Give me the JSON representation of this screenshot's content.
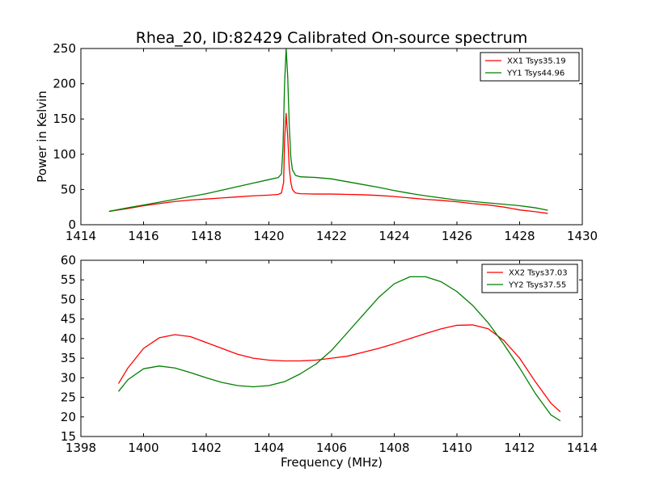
{
  "chart_data": [
    {
      "type": "line",
      "title": "Rhea_20, ID:82429 Calibrated On-source spectrum",
      "xlabel": "",
      "ylabel": "Power in Kelvin",
      "xlim": [
        1414,
        1430
      ],
      "ylim": [
        0,
        250
      ],
      "xticks": [
        "1414",
        "1416",
        "1418",
        "1420",
        "1422",
        "1424",
        "1426",
        "1428",
        "1430"
      ],
      "yticks": [
        "0",
        "50",
        "100",
        "150",
        "200",
        "250"
      ],
      "grid": false,
      "legend_position": "top-right",
      "colors": {
        "XX1": "#ff0000",
        "YY1": "#008000"
      },
      "series": [
        {
          "name": "XX1 Tsys35.19",
          "color": "#ff0000",
          "points": [
            [
              1414.9,
              19
            ],
            [
              1415.5,
              23
            ],
            [
              1416.0,
              27
            ],
            [
              1416.5,
              30
            ],
            [
              1417.0,
              33
            ],
            [
              1417.5,
              35
            ],
            [
              1418.0,
              36.5
            ],
            [
              1418.5,
              38
            ],
            [
              1419.0,
              39.5
            ],
            [
              1419.5,
              41
            ],
            [
              1420.0,
              42
            ],
            [
              1420.3,
              43
            ],
            [
              1420.4,
              45
            ],
            [
              1420.47,
              60
            ],
            [
              1420.5,
              120
            ],
            [
              1420.55,
              158
            ],
            [
              1420.6,
              125
            ],
            [
              1420.65,
              80
            ],
            [
              1420.7,
              60
            ],
            [
              1420.75,
              50
            ],
            [
              1420.85,
              45
            ],
            [
              1421.0,
              44
            ],
            [
              1421.5,
              43.5
            ],
            [
              1422.0,
              43.5
            ],
            [
              1422.5,
              43
            ],
            [
              1423.0,
              42.5
            ],
            [
              1423.5,
              41.5
            ],
            [
              1424.0,
              40
            ],
            [
              1424.5,
              38
            ],
            [
              1425.0,
              36
            ],
            [
              1425.5,
              34.5
            ],
            [
              1426.0,
              32.5
            ],
            [
              1426.5,
              30
            ],
            [
              1427.0,
              28
            ],
            [
              1427.5,
              25
            ],
            [
              1428.0,
              21
            ],
            [
              1428.5,
              18.5
            ],
            [
              1428.9,
              16
            ]
          ]
        },
        {
          "name": "YY1 Tsys44.96",
          "color": "#008000",
          "points": [
            [
              1414.9,
              19
            ],
            [
              1415.5,
              24
            ],
            [
              1416.0,
              28
            ],
            [
              1416.5,
              32
            ],
            [
              1417.0,
              36
            ],
            [
              1417.5,
              40
            ],
            [
              1418.0,
              44
            ],
            [
              1418.5,
              49
            ],
            [
              1419.0,
              54
            ],
            [
              1419.5,
              59
            ],
            [
              1420.0,
              64
            ],
            [
              1420.3,
              67
            ],
            [
              1420.4,
              72
            ],
            [
              1420.45,
              110
            ],
            [
              1420.5,
              200
            ],
            [
              1420.55,
              250
            ],
            [
              1420.6,
              210
            ],
            [
              1420.65,
              140
            ],
            [
              1420.7,
              95
            ],
            [
              1420.75,
              78
            ],
            [
              1420.85,
              70
            ],
            [
              1421.0,
              68
            ],
            [
              1421.5,
              67
            ],
            [
              1422.0,
              65
            ],
            [
              1422.5,
              61
            ],
            [
              1423.0,
              57
            ],
            [
              1423.5,
              53
            ],
            [
              1424.0,
              48.5
            ],
            [
              1424.5,
              44.5
            ],
            [
              1425.0,
              41
            ],
            [
              1425.5,
              38
            ],
            [
              1426.0,
              35
            ],
            [
              1426.5,
              33
            ],
            [
              1427.0,
              31
            ],
            [
              1427.5,
              29
            ],
            [
              1428.0,
              27
            ],
            [
              1428.5,
              24
            ],
            [
              1428.9,
              20.5
            ]
          ]
        }
      ]
    },
    {
      "type": "line",
      "title": "",
      "xlabel": "Frequency (MHz)",
      "ylabel": "",
      "xlim": [
        1398,
        1414
      ],
      "ylim": [
        15,
        60
      ],
      "xticks": [
        "1398",
        "1400",
        "1402",
        "1404",
        "1406",
        "1408",
        "1410",
        "1412",
        "1414"
      ],
      "yticks": [
        "15",
        "20",
        "25",
        "30",
        "35",
        "40",
        "45",
        "50",
        "55",
        "60"
      ],
      "grid": false,
      "legend_position": "top-right",
      "colors": {
        "XX2": "#ff0000",
        "YY2": "#008000"
      },
      "series": [
        {
          "name": "XX2 Tsys37.03",
          "color": "#ff0000",
          "points": [
            [
              1399.2,
              28.5
            ],
            [
              1399.5,
              32.5
            ],
            [
              1400.0,
              37.5
            ],
            [
              1400.5,
              40.2
            ],
            [
              1401.0,
              41
            ],
            [
              1401.5,
              40.5
            ],
            [
              1402.0,
              39
            ],
            [
              1402.5,
              37.5
            ],
            [
              1403.0,
              36
            ],
            [
              1403.5,
              35
            ],
            [
              1404.0,
              34.5
            ],
            [
              1404.5,
              34.3
            ],
            [
              1405.0,
              34.3
            ],
            [
              1405.5,
              34.5
            ],
            [
              1406.0,
              35
            ],
            [
              1406.5,
              35.5
            ],
            [
              1407.0,
              36.5
            ],
            [
              1407.5,
              37.5
            ],
            [
              1408.0,
              38.7
            ],
            [
              1408.5,
              40
            ],
            [
              1409.0,
              41.3
            ],
            [
              1409.5,
              42.5
            ],
            [
              1410.0,
              43.4
            ],
            [
              1410.5,
              43.5
            ],
            [
              1411.0,
              42.5
            ],
            [
              1411.5,
              39.5
            ],
            [
              1412.0,
              35
            ],
            [
              1412.5,
              29
            ],
            [
              1413.0,
              23.5
            ],
            [
              1413.3,
              21.3
            ]
          ]
        },
        {
          "name": "YY2 Tsys37.55",
          "color": "#008000",
          "points": [
            [
              1399.2,
              26.5
            ],
            [
              1399.5,
              29.5
            ],
            [
              1400.0,
              32.3
            ],
            [
              1400.5,
              33
            ],
            [
              1401.0,
              32.5
            ],
            [
              1401.5,
              31.3
            ],
            [
              1402.0,
              30
            ],
            [
              1402.5,
              28.8
            ],
            [
              1403.0,
              28
            ],
            [
              1403.5,
              27.7
            ],
            [
              1404.0,
              28
            ],
            [
              1404.5,
              29
            ],
            [
              1405.0,
              31
            ],
            [
              1405.5,
              33.5
            ],
            [
              1406.0,
              37
            ],
            [
              1406.5,
              41.5
            ],
            [
              1407.0,
              46
            ],
            [
              1407.5,
              50.5
            ],
            [
              1408.0,
              54
            ],
            [
              1408.5,
              55.8
            ],
            [
              1409.0,
              55.8
            ],
            [
              1409.5,
              54.5
            ],
            [
              1410.0,
              52
            ],
            [
              1410.5,
              48.5
            ],
            [
              1411.0,
              44
            ],
            [
              1411.5,
              38.5
            ],
            [
              1412.0,
              32.5
            ],
            [
              1412.5,
              26
            ],
            [
              1413.0,
              20.5
            ],
            [
              1413.3,
              19
            ]
          ]
        }
      ]
    }
  ]
}
